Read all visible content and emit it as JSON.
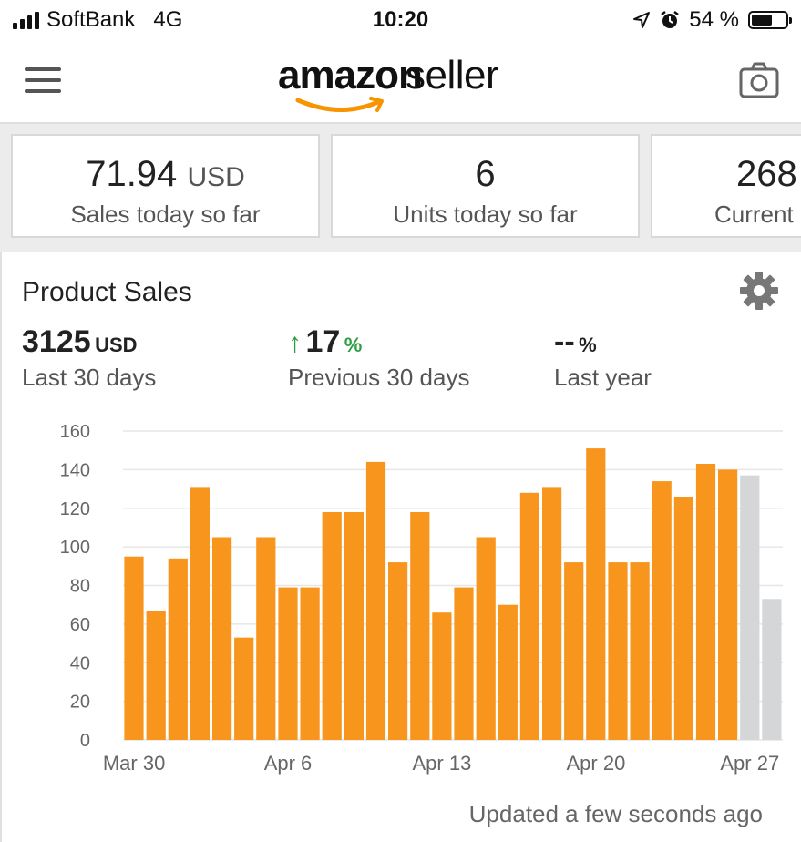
{
  "status_bar": {
    "carrier": "SoftBank",
    "network": "4G",
    "time": "10:20",
    "battery": "54 %",
    "battery_level": 0.54
  },
  "header": {
    "brand_amazon": "amazon",
    "brand_seller": "seller",
    "logo_color": "#f79400"
  },
  "kpis": [
    {
      "value": "71.94",
      "unit": "USD",
      "label": "Sales today so far"
    },
    {
      "value": "6",
      "unit": "",
      "label": "Units today so far"
    },
    {
      "value": "268",
      "unit": "",
      "label": "Current"
    }
  ],
  "product_sales": {
    "title": "Product Sales",
    "total_value": "3125",
    "total_unit": "USD",
    "total_label": "Last 30 days",
    "change_arrow": "↑",
    "change_value": "17",
    "change_unit": "%",
    "change_label": "Previous 30 days",
    "year_value": "--",
    "year_unit": "%",
    "year_label": "Last year",
    "updated_text": "Updated a few seconds ago"
  },
  "colors": {
    "bar": "#f7951d",
    "bar_projected": "#d4d6d8",
    "positive": "#2e9e44"
  },
  "chart_data": {
    "type": "bar",
    "categories": [
      "Mar 30",
      "Mar 31",
      "Apr 1",
      "Apr 2",
      "Apr 3",
      "Apr 4",
      "Apr 5",
      "Apr 6",
      "Apr 7",
      "Apr 8",
      "Apr 9",
      "Apr 10",
      "Apr 11",
      "Apr 12",
      "Apr 13",
      "Apr 14",
      "Apr 15",
      "Apr 16",
      "Apr 17",
      "Apr 18",
      "Apr 19",
      "Apr 20",
      "Apr 21",
      "Apr 22",
      "Apr 23",
      "Apr 24",
      "Apr 25",
      "Apr 26",
      "Apr 27",
      "Apr 28"
    ],
    "series": [
      {
        "values": [
          95,
          67,
          94,
          131,
          105,
          53,
          105,
          79,
          79,
          118,
          118,
          144,
          92,
          118,
          66,
          79,
          105,
          70,
          128,
          131,
          92,
          151,
          92,
          92,
          134,
          126,
          143,
          140,
          null,
          null
        ]
      },
      {
        "values": [
          null,
          null,
          null,
          null,
          null,
          null,
          null,
          null,
          null,
          null,
          null,
          null,
          null,
          null,
          null,
          null,
          null,
          null,
          null,
          null,
          null,
          null,
          null,
          null,
          null,
          null,
          null,
          null,
          137,
          73
        ]
      }
    ],
    "x_tick_labels": [
      "Mar 30",
      "Apr 6",
      "Apr 13",
      "Apr 20",
      "Apr 27"
    ],
    "x_tick_index": [
      0,
      7,
      14,
      21,
      28
    ],
    "y_ticks": [
      0,
      20,
      40,
      60,
      80,
      100,
      120,
      140,
      160
    ],
    "ylim": [
      0,
      160
    ],
    "grid": true,
    "legend": "none"
  }
}
